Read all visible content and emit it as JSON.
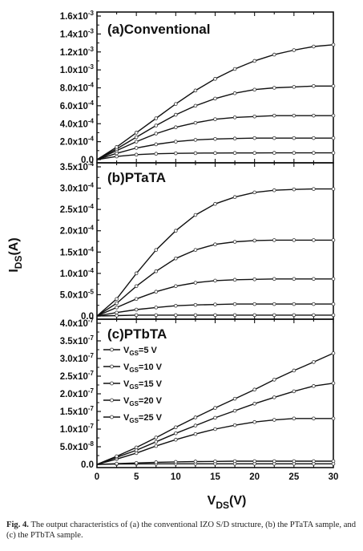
{
  "figure": {
    "y_axis_label": {
      "main": "I",
      "sub": "DS",
      "unit": "(A)"
    },
    "x_axis_label": {
      "main": "V",
      "sub": "DS",
      "unit": "(V)"
    },
    "x_ticks": [
      "0",
      "5",
      "10",
      "15",
      "20",
      "25",
      "30"
    ],
    "legend": [
      "V_GS=5 V",
      "V_GS=10 V",
      "V_GS=15 V",
      "V_GS=20 V",
      "V_GS=25 V"
    ]
  },
  "caption": {
    "label": "Fig. 4.",
    "text": "The output characteristics of (a) the conventional IZO S/D structure, (b) the PTaTA sample, and (c) the PTbTA sample."
  },
  "chart_data": [
    {
      "type": "line",
      "title": "(a)Conventional",
      "xlim": [
        0,
        30
      ],
      "ylim": [
        0,
        0.0016
      ],
      "y_ticks": [
        "0.0",
        "2.0x10⁻⁴",
        "4.0x10⁻⁴",
        "6.0x10⁻⁴",
        "8.0x10⁻⁴",
        "1.0x10⁻³",
        "1.2x10⁻³",
        "1.4x10⁻³",
        "1.6x10⁻³"
      ],
      "x": [
        0,
        2.5,
        5,
        7.5,
        10,
        12.5,
        15,
        17.5,
        20,
        22.5,
        25,
        27.5,
        30
      ],
      "series": [
        {
          "name": "V_GS=5 V",
          "values": [
            0,
            3.5e-05,
            5.5e-05,
            6.5e-05,
            7e-05,
            7.2e-05,
            7.3e-05,
            7.4e-05,
            7.4e-05,
            7.5e-05,
            7.5e-05,
            7.5e-05,
            7.5e-05
          ]
        },
        {
          "name": "V_GS=10 V",
          "values": [
            0,
            7e-05,
            0.00013,
            0.00017,
            0.0002,
            0.00022,
            0.00023,
            0.000235,
            0.00024,
            0.00024,
            0.00024,
            0.00024,
            0.00024
          ]
        },
        {
          "name": "V_GS=15 V",
          "values": [
            0,
            0.0001,
            0.0002,
            0.00029,
            0.00036,
            0.00041,
            0.00045,
            0.00047,
            0.00048,
            0.00049,
            0.00049,
            0.00049,
            0.00049
          ]
        },
        {
          "name": "V_GS=20 V",
          "values": [
            0,
            0.00012,
            0.00025,
            0.00038,
            0.0005,
            0.0006,
            0.00068,
            0.00074,
            0.00078,
            0.0008,
            0.00081,
            0.00082,
            0.00082
          ]
        },
        {
          "name": "V_GS=25 V",
          "values": [
            0,
            0.00014,
            0.0003,
            0.00046,
            0.00062,
            0.00077,
            0.0009,
            0.00101,
            0.0011,
            0.00117,
            0.00122,
            0.00126,
            0.00128
          ]
        }
      ]
    },
    {
      "type": "line",
      "title": "(b)PTaTA",
      "xlim": [
        0,
        30
      ],
      "ylim": [
        0,
        0.00035
      ],
      "y_ticks": [
        "0.0",
        "5.0x10⁻⁵",
        "1.0x10⁻⁴",
        "1.5x10⁻⁴",
        "2.0x10⁻⁴",
        "2.5x10⁻⁴",
        "3.0x10⁻⁴",
        "3.5x10⁻⁴"
      ],
      "x": [
        0,
        2.5,
        5,
        7.5,
        10,
        12.5,
        15,
        17.5,
        20,
        22.5,
        25,
        27.5,
        30
      ],
      "series": [
        {
          "name": "V_GS=5 V",
          "values": [
            0,
            1e-06,
            2e-06,
            2e-06,
            2e-06,
            2e-06,
            2e-06,
            2e-06,
            2e-06,
            2e-06,
            2e-06,
            2e-06,
            2e-06
          ]
        },
        {
          "name": "V_GS=10 V",
          "values": [
            0,
            8e-06,
            1.5e-05,
            2e-05,
            2.4e-05,
            2.6e-05,
            2.7e-05,
            2.8e-05,
            2.8e-05,
            2.8e-05,
            2.8e-05,
            2.8e-05,
            2.8e-05
          ]
        },
        {
          "name": "V_GS=15 V",
          "values": [
            0,
            2e-05,
            4e-05,
            5.7e-05,
            7e-05,
            7.8e-05,
            8.3e-05,
            8.5e-05,
            8.6e-05,
            8.7e-05,
            8.7e-05,
            8.7e-05,
            8.7e-05
          ]
        },
        {
          "name": "V_GS=20 V",
          "values": [
            0,
            3e-05,
            7e-05,
            0.000105,
            0.000135,
            0.000155,
            0.000168,
            0.000174,
            0.000177,
            0.000178,
            0.000178,
            0.000178,
            0.000178
          ]
        },
        {
          "name": "V_GS=25 V",
          "values": [
            0,
            4e-05,
            0.0001,
            0.000155,
            0.0002,
            0.000237,
            0.000263,
            0.000279,
            0.00029,
            0.000295,
            0.000297,
            0.000298,
            0.000298
          ]
        }
      ]
    },
    {
      "type": "line",
      "title": "(c)PTbTA",
      "xlim": [
        0,
        30
      ],
      "ylim": [
        0,
        4e-07
      ],
      "y_ticks": [
        "0.0",
        "5.0x10⁻⁸",
        "1.0x10⁻⁷",
        "1.5x10⁻⁷",
        "2.0x10⁻⁷",
        "2.5x10⁻⁷",
        "3.0x10⁻⁷",
        "3.5x10⁻⁷",
        "4.0x10⁻⁷"
      ],
      "legend_position": "left",
      "x": [
        0,
        2.5,
        5,
        7.5,
        10,
        12.5,
        15,
        17.5,
        20,
        22.5,
        25,
        27.5,
        30
      ],
      "series": [
        {
          "name": "V_GS=5 V",
          "values": [
            0,
            8e-10,
            1.3e-09,
            1.5e-09,
            1.6e-09,
            1.6e-09,
            1.6e-09,
            1.6e-09,
            1.6e-09,
            1.6e-09,
            1.6e-09,
            1.6e-09,
            1.6e-09
          ]
        },
        {
          "name": "V_GS=10 V",
          "values": [
            0,
            2e-09,
            4e-09,
            6e-09,
            7e-09,
            8e-09,
            8.5e-09,
            9e-09,
            9e-09,
            9e-09,
            9e-09,
            9e-09,
            9e-09
          ]
        },
        {
          "name": "V_GS=15 V",
          "values": [
            0,
            1.5e-08,
            3.2e-08,
            5.2e-08,
            7e-08,
            8.6e-08,
            1e-07,
            1.11e-07,
            1.2e-07,
            1.26e-07,
            1.3e-07,
            1.3e-07,
            1.3e-07
          ]
        },
        {
          "name": "V_GS=20 V",
          "values": [
            0,
            2e-08,
            4e-08,
            6.4e-08,
            8.8e-08,
            1.1e-07,
            1.32e-07,
            1.52e-07,
            1.72e-07,
            1.9e-07,
            2.07e-07,
            2.22e-07,
            2.3e-07
          ]
        },
        {
          "name": "V_GS=25 V",
          "values": [
            0,
            2.3e-08,
            4.8e-08,
            7.6e-08,
            1.05e-07,
            1.33e-07,
            1.6e-07,
            1.86e-07,
            2.12e-07,
            2.4e-07,
            2.66e-07,
            2.9e-07,
            3.15e-07
          ]
        }
      ]
    }
  ]
}
